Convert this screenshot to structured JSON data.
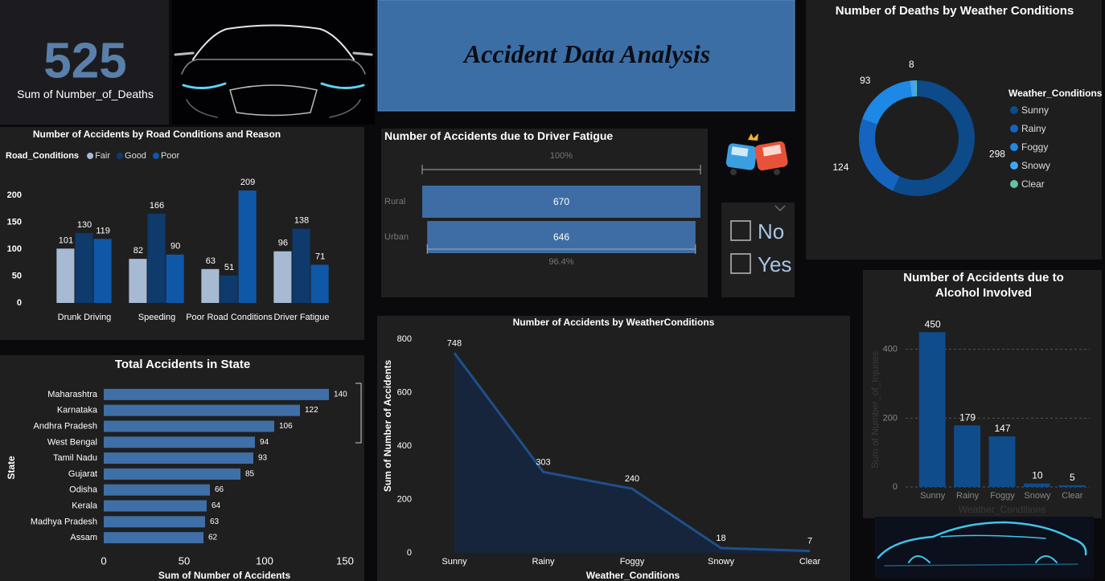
{
  "kpi": {
    "value": 525,
    "label": "Sum of Number_of_Deaths"
  },
  "header": {
    "title": "Accident Data Analysis"
  },
  "slicer": {
    "options": [
      "No",
      "Yes"
    ]
  },
  "chart_data": [
    {
      "type": "bar",
      "title": "Number of Accidents by Road Conditions and Reason",
      "legend_title": "Road_Conditions",
      "categories": [
        "Drunk Driving",
        "Speeding",
        "Poor Road Conditions",
        "Driver Fatigue"
      ],
      "series": [
        {
          "name": "Fair",
          "color": "#a7bad3",
          "values": [
            101,
            82,
            63,
            96
          ]
        },
        {
          "name": "Good",
          "color": "#0e3a6c",
          "values": [
            130,
            166,
            51,
            138
          ]
        },
        {
          "name": "Poor",
          "color": "#0f58a8",
          "values": [
            119,
            90,
            209,
            71
          ]
        }
      ],
      "ylim": [
        0,
        230
      ],
      "yticks": [
        0,
        50,
        100,
        150,
        200
      ],
      "grid": false
    },
    {
      "type": "funnel",
      "title": "Number of Accidents due to Driver Fatigue",
      "categories": [
        "Rural",
        "Urban"
      ],
      "values": [
        670,
        646
      ],
      "percent_labels": [
        "100%",
        "96.4%"
      ],
      "color": "#3d6da4"
    },
    {
      "type": "donut",
      "title": "Number of Deaths by Weather Conditions",
      "legend_title": "Weather_Conditions",
      "categories": [
        "Sunny",
        "Rainy",
        "Foggy",
        "Snowy",
        "Clear"
      ],
      "values": [
        298,
        124,
        93,
        8,
        2
      ],
      "colors": [
        "#0c4a8a",
        "#1565c0",
        "#1e88e5",
        "#41a6f2",
        "#66c2a5"
      ]
    },
    {
      "type": "bar",
      "title": "Number of Accidents due to Alcohol Involved",
      "x_label": "Weather_Conditions",
      "y_label": "Sum of Number_of_Injuries",
      "categories": [
        "Sunny",
        "Rainy",
        "Foggy",
        "Snowy",
        "Clear"
      ],
      "values": [
        450,
        179,
        147,
        10,
        5
      ],
      "color": "#0f4c8c",
      "ylim": [
        0,
        460
      ],
      "yticks": [
        0,
        200,
        400
      ],
      "grid": true
    },
    {
      "type": "area",
      "title": "Number of Accidents by WeatherConditions",
      "x_label": "Weather_Conditions",
      "y_label": "Sum of Number of Accidents",
      "categories": [
        "Sunny",
        "Rainy",
        "Foggy",
        "Snowy",
        "Clear"
      ],
      "values": [
        748,
        303,
        240,
        18,
        7
      ],
      "color": "#1f4f8c",
      "ylim": [
        0,
        800
      ],
      "yticks": [
        0,
        200,
        400,
        600,
        800
      ],
      "grid": false
    },
    {
      "type": "bar",
      "orientation": "horizontal",
      "title": "Total Accidents in State",
      "x_label": "Sum of Number of Accidents",
      "y_label": "State",
      "categories": [
        "Maharashtra",
        "Karnataka",
        "Andhra Pradesh",
        "West Bengal",
        "Tamil Nadu",
        "Gujarat",
        "Odisha",
        "Kerala",
        "Madhya Pradesh",
        "Assam"
      ],
      "values": [
        140,
        122,
        106,
        94,
        93,
        85,
        66,
        64,
        63,
        62
      ],
      "color": "#3e6fa7",
      "xlim": [
        0,
        150
      ],
      "xticks": [
        0,
        50,
        100,
        150
      ],
      "grid": false
    }
  ]
}
